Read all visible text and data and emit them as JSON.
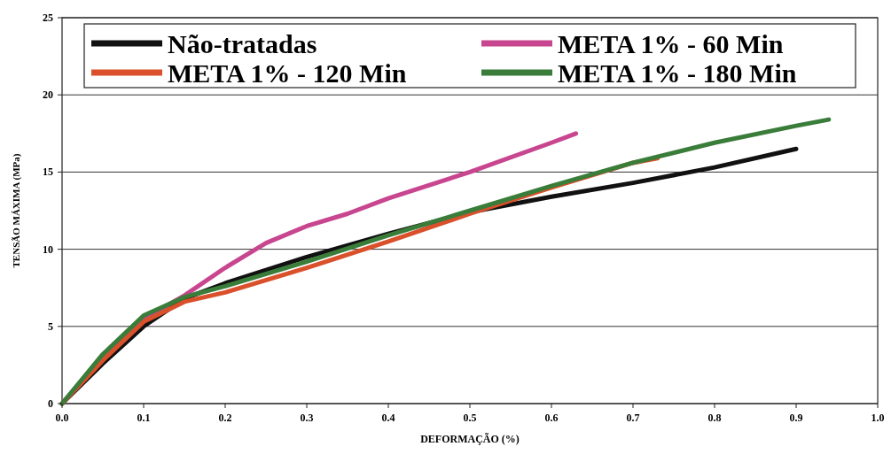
{
  "chart_data": {
    "type": "line",
    "xlabel": "DEFORMAÇÃO (%)",
    "ylabel": "TENSÃO MÁXIMA (MPa)",
    "xlim": [
      0,
      1
    ],
    "xticks": [
      {
        "value": 0,
        "label": "0.0"
      },
      {
        "value": 0.1,
        "label": "0.1"
      },
      {
        "value": 0.2,
        "label": "0.2"
      },
      {
        "value": 0.3,
        "label": "0.3"
      },
      {
        "value": 0.4,
        "label": "0.4"
      },
      {
        "value": 0.5,
        "label": "0.5"
      },
      {
        "value": 0.6,
        "label": "0.6"
      },
      {
        "value": 0.7,
        "label": "0.7"
      },
      {
        "value": 0.8,
        "label": "0.8"
      },
      {
        "value": 0.9,
        "label": "0.9"
      },
      {
        "value": 1,
        "label": "1.0"
      }
    ],
    "ylim": [
      0,
      25
    ],
    "yticks": [
      0,
      5,
      10,
      15,
      20,
      25
    ],
    "grid": "y",
    "legend": "top",
    "marker": "none",
    "line_style": "solid",
    "series": [
      {
        "name": "Não-tratadas",
        "color": "#111111",
        "x": [
          0,
          0.05,
          0.1,
          0.15,
          0.2,
          0.3,
          0.4,
          0.5,
          0.6,
          0.7,
          0.8,
          0.9
        ],
        "values": [
          0,
          2.6,
          5.0,
          6.8,
          7.8,
          9.5,
          11.0,
          12.4,
          13.4,
          14.3,
          15.3,
          16.5
        ]
      },
      {
        "name": "META 1% - 60 Min",
        "color": "#c8468f",
        "x": [
          0,
          0.05,
          0.1,
          0.15,
          0.2,
          0.25,
          0.3,
          0.35,
          0.4,
          0.5,
          0.6,
          0.63
        ],
        "values": [
          0,
          3.0,
          5.5,
          7.0,
          8.8,
          10.4,
          11.5,
          12.3,
          13.3,
          15.0,
          16.9,
          17.5
        ]
      },
      {
        "name": "META 1% - 120 Min",
        "color": "#d9502a",
        "x": [
          0,
          0.05,
          0.1,
          0.15,
          0.2,
          0.3,
          0.4,
          0.5,
          0.6,
          0.7,
          0.73
        ],
        "values": [
          0,
          2.8,
          5.3,
          6.6,
          7.2,
          8.8,
          10.5,
          12.3,
          14.0,
          15.6,
          15.9
        ]
      },
      {
        "name": "META 1% - 180 Min",
        "color": "#3a7d3a",
        "x": [
          0,
          0.05,
          0.1,
          0.15,
          0.2,
          0.3,
          0.4,
          0.5,
          0.6,
          0.7,
          0.8,
          0.9,
          0.94
        ],
        "values": [
          0,
          3.2,
          5.7,
          6.9,
          7.6,
          9.2,
          10.9,
          12.5,
          14.1,
          15.6,
          16.9,
          18.0,
          18.4
        ]
      }
    ]
  }
}
